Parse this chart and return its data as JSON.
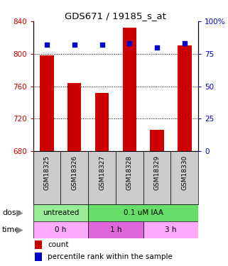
{
  "title": "GDS671 / 19185_s_at",
  "samples": [
    "GSM18325",
    "GSM18326",
    "GSM18327",
    "GSM18328",
    "GSM18329",
    "GSM18330"
  ],
  "bar_values": [
    798,
    764,
    752,
    832,
    706,
    810
  ],
  "dot_values": [
    82,
    82,
    82,
    83,
    80,
    83
  ],
  "bar_color": "#cc0000",
  "dot_color": "#0000cc",
  "ymin": 680,
  "ymax": 840,
  "yticks": [
    680,
    720,
    760,
    800,
    840
  ],
  "y2min": 0,
  "y2max": 100,
  "y2ticks": [
    0,
    25,
    50,
    75,
    100
  ],
  "y2ticklabels": [
    "0",
    "25",
    "50",
    "75",
    "100%"
  ],
  "xtick_bg": "#cccccc",
  "dose_untreated_color": "#99ee99",
  "dose_iaa_color": "#66dd66",
  "time_0h_color": "#ffaaff",
  "time_1h_color": "#dd66dd",
  "time_3h_color": "#ffaaff",
  "legend_count_color": "#cc0000",
  "legend_dot_color": "#0000cc",
  "left_label_color": "#888888",
  "bg_color": "#ffffff"
}
